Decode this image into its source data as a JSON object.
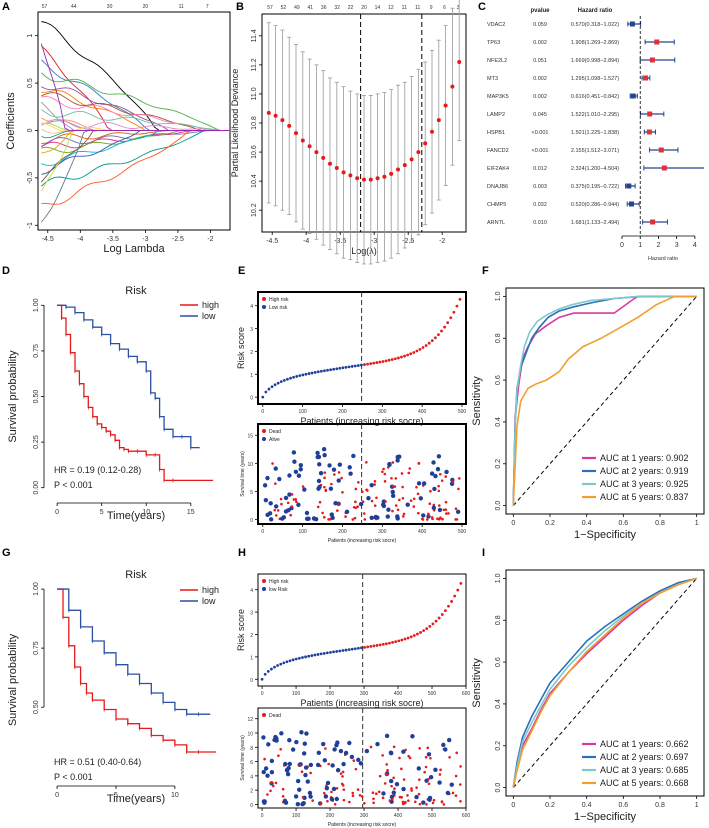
{
  "colors": {
    "red": "#e41a1c",
    "blue": "#2b4fa3",
    "navy": "#1f3f99",
    "grey": "#999999",
    "pink": "#d63a9e",
    "teal": "#2a72b8",
    "cyan": "#7fc7cf",
    "orange": "#f0a030",
    "forest_red": "#e0303a",
    "forest_blue": "#25468f"
  },
  "panel_labels": {
    "a": "A",
    "b": "B",
    "c": "C",
    "d": "D",
    "e": "E",
    "f": "F",
    "g": "G",
    "h": "H",
    "i": "I"
  },
  "chart_data": [
    {
      "id": "A",
      "type": "line",
      "xlabel": "Log Lambda",
      "ylabel": "Coefficients",
      "xticks": [
        -4.5,
        -4.0,
        -3.5,
        -3.0,
        -2.5,
        -2.0
      ],
      "xlim": [
        -4.65,
        -1.7
      ],
      "yticks": [
        -1.0,
        -0.5,
        0.0,
        0.5,
        1.0
      ],
      "ylim": [
        -1.05,
        1.25
      ],
      "top_ticks": [
        57,
        44,
        30,
        20,
        11,
        7
      ]
    },
    {
      "id": "B",
      "type": "scatter",
      "xlabel": "Log(λ)",
      "ylabel": "Partial Likelihood Deviance",
      "x": [
        -4.55,
        -4.45,
        -4.35,
        -4.25,
        -4.15,
        -4.05,
        -3.95,
        -3.85,
        -3.75,
        -3.65,
        -3.55,
        -3.45,
        -3.35,
        -3.25,
        -3.15,
        -3.05,
        -2.95,
        -2.85,
        -2.75,
        -2.65,
        -2.55,
        -2.45,
        -2.35,
        -2.25,
        -2.15,
        -2.05,
        -1.95,
        -1.85,
        -1.75
      ],
      "y": [
        10.87,
        10.85,
        10.82,
        10.78,
        10.73,
        10.68,
        10.64,
        10.6,
        10.56,
        10.52,
        10.49,
        10.46,
        10.44,
        10.42,
        10.41,
        10.41,
        10.42,
        10.43,
        10.45,
        10.48,
        10.51,
        10.55,
        10.6,
        10.66,
        10.74,
        10.82,
        10.92,
        11.05,
        11.22
      ],
      "err": [
        0.62,
        0.62,
        0.62,
        0.61,
        0.61,
        0.61,
        0.6,
        0.6,
        0.6,
        0.59,
        0.59,
        0.59,
        0.58,
        0.58,
        0.58,
        0.58,
        0.58,
        0.58,
        0.58,
        0.58,
        0.57,
        0.57,
        0.57,
        0.56,
        0.56,
        0.55,
        0.55,
        0.54,
        0.54
      ],
      "xticks": [
        -4.5,
        -4.0,
        -3.5,
        -3.0,
        -2.5,
        -2.0
      ],
      "xlim": [
        -4.65,
        -1.65
      ],
      "yticks": [
        10.2,
        10.4,
        10.6,
        10.8,
        11.0,
        11.2,
        11.4
      ],
      "ylim": [
        10.05,
        11.55
      ],
      "vlines": [
        -3.2,
        -2.3
      ],
      "top_ticks": [
        "57",
        "52",
        "49",
        "41",
        "36",
        "32",
        "22",
        "20",
        "14",
        "12",
        "11",
        "11",
        "9",
        "6",
        "3"
      ]
    },
    {
      "id": "C",
      "type": "forest",
      "pvalue_header": "pvalue",
      "hr_header": "Hazard ratio",
      "xlabel": "Hazard ratio",
      "xticks": [
        0,
        1,
        2,
        3,
        4
      ],
      "xlim": [
        0,
        4.5
      ],
      "genes": [
        {
          "name": "VDAC2",
          "p": "0.059",
          "hr_text": "0.570(0.318−1.022)",
          "hr": 0.57,
          "lo": 0.318,
          "hi": 1.022
        },
        {
          "name": "TP63",
          "p": "0.002",
          "hr_text": "1.908(1.269−2.869)",
          "hr": 1.908,
          "lo": 1.269,
          "hi": 2.869
        },
        {
          "name": "NFE2L2",
          "p": "0.051",
          "hr_text": "1.669(0.998−2.894)",
          "hr": 1.669,
          "lo": 0.998,
          "hi": 2.894
        },
        {
          "name": "MT3",
          "p": "0.002",
          "hr_text": "1.295(1.098−1.527)",
          "hr": 1.295,
          "lo": 1.098,
          "hi": 1.527
        },
        {
          "name": "MAP3K5",
          "p": "0.002",
          "hr_text": "0.616(0.451−0.842)",
          "hr": 0.616,
          "lo": 0.451,
          "hi": 0.842
        },
        {
          "name": "LAMP2",
          "p": "0.045",
          "hr_text": "1.522(1.010−2.295)",
          "hr": 1.522,
          "lo": 1.01,
          "hi": 2.295
        },
        {
          "name": "HSPB1",
          "p": "<0.001",
          "hr_text": "1.501(1.225−1.838)",
          "hr": 1.501,
          "lo": 1.225,
          "hi": 1.838
        },
        {
          "name": "FANCD2",
          "p": "<0.001",
          "hr_text": "2.155(1.512−3.071)",
          "hr": 2.155,
          "lo": 1.512,
          "hi": 3.071
        },
        {
          "name": "EIF2AK4",
          "p": "0.012",
          "hr_text": "2.324(1.200−4.504)",
          "hr": 2.324,
          "lo": 1.2,
          "hi": 4.504
        },
        {
          "name": "DNAJB6",
          "p": "0.003",
          "hr_text": "0.375(0.195−0.722)",
          "hr": 0.375,
          "lo": 0.195,
          "hi": 0.722
        },
        {
          "name": "CHMP5",
          "p": "0.032",
          "hr_text": "0.520(0.286−0.944)",
          "hr": 0.52,
          "lo": 0.286,
          "hi": 0.944
        },
        {
          "name": "ARNTL",
          "p": "0.010",
          "hr_text": "1.681(1.133−2.494)",
          "hr": 1.681,
          "lo": 1.133,
          "hi": 2.494
        }
      ]
    },
    {
      "id": "D",
      "type": "line",
      "title": "Risk",
      "xlabel": "Time(years)",
      "ylabel": "Survival probability",
      "xticks": [
        0,
        5,
        10,
        15
      ],
      "xlim": [
        -0.8,
        18.5
      ],
      "yticks": [
        0.0,
        0.25,
        0.5,
        0.75,
        1.0
      ],
      "ylim": [
        -0.04,
        1.04
      ],
      "legend": [
        "high",
        "low"
      ],
      "hr_text": "HR = 0.19 (0.12-0.28)",
      "p_text": "P < 0.001",
      "series": [
        {
          "name": "high",
          "x": [
            0,
            0.5,
            1,
            1.5,
            2,
            2.5,
            3,
            3.5,
            4,
            4.5,
            5,
            5.5,
            6,
            6.5,
            7,
            7.5,
            8,
            9,
            10,
            11,
            11.5,
            12,
            13,
            17.5
          ],
          "y": [
            1.0,
            0.93,
            0.84,
            0.74,
            0.64,
            0.57,
            0.5,
            0.44,
            0.39,
            0.35,
            0.33,
            0.31,
            0.29,
            0.26,
            0.22,
            0.21,
            0.2,
            0.2,
            0.18,
            0.18,
            0.1,
            0.04,
            0.04,
            0.04
          ]
        },
        {
          "name": "low",
          "x": [
            0,
            1,
            2,
            3,
            4,
            5,
            6,
            7,
            8,
            9,
            10,
            10.5,
            11,
            11.5,
            12,
            13,
            14,
            15,
            16
          ],
          "y": [
            1.0,
            0.99,
            0.96,
            0.92,
            0.88,
            0.84,
            0.79,
            0.76,
            0.72,
            0.69,
            0.64,
            0.52,
            0.49,
            0.39,
            0.32,
            0.28,
            0.28,
            0.22,
            0.22
          ]
        }
      ]
    },
    {
      "id": "E1",
      "type": "scatter",
      "ylabel": "Risk score",
      "xlabel": "Patients (increasing risk socre)",
      "xticks": [
        0,
        100,
        200,
        300,
        400,
        500
      ],
      "xlim": [
        -12,
        510
      ],
      "yticks": [
        0,
        1,
        2,
        3,
        4
      ],
      "ylim": [
        -0.3,
        4.6
      ],
      "cutoff": 248,
      "legend": [
        "High risk",
        "Low risk"
      ]
    },
    {
      "id": "E2",
      "type": "scatter",
      "ylabel": "Survival time (years)",
      "xlabel": "Patients (increasing risk socre)",
      "xticks": [
        0,
        100,
        200,
        300,
        400,
        500
      ],
      "xlim": [
        -12,
        510
      ],
      "yticks": [
        0,
        5,
        10,
        15
      ],
      "ylim": [
        -0.8,
        17
      ],
      "cutoff": 248,
      "legend": [
        "Dead",
        "Alive"
      ]
    },
    {
      "id": "F",
      "type": "line",
      "xlabel": "1−Specificity",
      "ylabel": "Sensitivity",
      "xticks": [
        0.0,
        0.2,
        0.4,
        0.6,
        0.8,
        1.0
      ],
      "yticks": [
        0.0,
        0.2,
        0.4,
        0.6,
        0.8,
        1.0
      ],
      "xlim": [
        -0.04,
        1.04
      ],
      "ylim": [
        -0.04,
        1.04
      ],
      "series": [
        {
          "name": "AUC at 1 years: 0.902",
          "x": [
            0,
            0.01,
            0.03,
            0.05,
            0.08,
            0.12,
            0.18,
            0.25,
            0.33,
            0.42,
            0.55,
            0.66,
            0.68,
            1.0
          ],
          "y": [
            0,
            0.42,
            0.58,
            0.7,
            0.76,
            0.82,
            0.86,
            0.9,
            0.92,
            0.92,
            0.92,
            0.99,
            1.0,
            1.0
          ]
        },
        {
          "name": "AUC at 2 years: 0.919",
          "x": [
            0,
            0.01,
            0.02,
            0.04,
            0.07,
            0.1,
            0.14,
            0.19,
            0.25,
            0.33,
            0.43,
            0.55,
            0.7,
            1.0
          ],
          "y": [
            0,
            0.4,
            0.56,
            0.66,
            0.73,
            0.8,
            0.85,
            0.9,
            0.93,
            0.95,
            0.97,
            0.99,
            1.0,
            1.0
          ]
        },
        {
          "name": "AUC at 3 years: 0.925",
          "x": [
            0,
            0.01,
            0.02,
            0.04,
            0.06,
            0.09,
            0.13,
            0.18,
            0.25,
            0.32,
            0.42,
            0.55,
            0.68,
            1.0
          ],
          "y": [
            0,
            0.38,
            0.55,
            0.67,
            0.76,
            0.83,
            0.88,
            0.91,
            0.94,
            0.96,
            0.98,
            0.99,
            1.0,
            1.0
          ]
        },
        {
          "name": "AUC at 5 years: 0.837",
          "x": [
            0,
            0.02,
            0.04,
            0.08,
            0.12,
            0.18,
            0.25,
            0.3,
            0.38,
            0.48,
            0.58,
            0.68,
            0.78,
            0.88,
            1.0
          ],
          "y": [
            0,
            0.38,
            0.5,
            0.56,
            0.58,
            0.6,
            0.64,
            0.7,
            0.76,
            0.8,
            0.85,
            0.9,
            0.96,
            1.0,
            1.0
          ]
        }
      ]
    },
    {
      "id": "G",
      "type": "line",
      "title": "Risk",
      "xlabel": "Time(years)",
      "ylabel": "Survival probability",
      "xticks": [
        0,
        5,
        10
      ],
      "xlim": [
        -0.6,
        14
      ],
      "yticks": [
        0.5,
        0.75,
        1.0
      ],
      "ylim": [
        0.2,
        1.03
      ],
      "legend": [
        "high",
        "low"
      ],
      "hr_text": "HR = 0.51 (0.40-0.64)",
      "p_text": "P < 0.001",
      "series": [
        {
          "name": "high",
          "x": [
            0,
            0.5,
            1,
            1.5,
            2,
            2.5,
            3,
            4,
            5,
            6,
            7,
            8,
            9,
            10,
            11,
            12,
            13.5
          ],
          "y": [
            1.0,
            0.88,
            0.76,
            0.67,
            0.6,
            0.56,
            0.53,
            0.49,
            0.45,
            0.43,
            0.41,
            0.38,
            0.36,
            0.34,
            0.31,
            0.31,
            0.31
          ]
        },
        {
          "name": "low",
          "x": [
            0,
            1,
            2,
            3,
            4,
            5,
            6,
            7,
            8,
            9,
            10,
            11,
            12,
            13
          ],
          "y": [
            1.0,
            0.91,
            0.84,
            0.78,
            0.73,
            0.68,
            0.64,
            0.6,
            0.56,
            0.52,
            0.49,
            0.47,
            0.47,
            0.47
          ]
        }
      ]
    },
    {
      "id": "H1",
      "type": "scatter",
      "ylabel": "Risk score",
      "xlabel": "Patients (increasing risk socre)",
      "xticks": [
        0,
        100,
        200,
        300,
        400,
        500,
        600
      ],
      "xlim": [
        -12,
        600
      ],
      "yticks": [
        0,
        1,
        2,
        3,
        4
      ],
      "ylim": [
        -0.3,
        4.7
      ],
      "cutoff": 296,
      "legend": [
        "High risk",
        "low Risk"
      ]
    },
    {
      "id": "H2",
      "type": "scatter",
      "ylabel": "Survival time (years)",
      "xlabel": "Patients (increasing risk socre)",
      "xticks": [
        0,
        100,
        200,
        300,
        400,
        500,
        600
      ],
      "xlim": [
        -12,
        600
      ],
      "yticks": [
        0,
        2,
        4,
        6,
        8,
        10,
        12
      ],
      "ylim": [
        -0.5,
        13.5
      ],
      "cutoff": 296,
      "legend": [
        "Dead"
      ]
    },
    {
      "id": "I",
      "type": "line",
      "xlabel": "1−Specificity",
      "ylabel": "Sensitivity",
      "xticks": [
        0.0,
        0.2,
        0.4,
        0.6,
        0.8,
        1.0
      ],
      "yticks": [
        0.0,
        0.2,
        0.4,
        0.6,
        0.8,
        1.0
      ],
      "xlim": [
        -0.04,
        1.04
      ],
      "ylim": [
        -0.04,
        1.04
      ],
      "series": [
        {
          "name": "AUC at 1 years: 0.662",
          "x": [
            0,
            0.02,
            0.05,
            0.1,
            0.15,
            0.2,
            0.3,
            0.4,
            0.5,
            0.6,
            0.7,
            0.8,
            0.9,
            1.0
          ],
          "y": [
            0,
            0.1,
            0.2,
            0.28,
            0.37,
            0.45,
            0.55,
            0.64,
            0.72,
            0.8,
            0.87,
            0.93,
            0.97,
            1.0
          ]
        },
        {
          "name": "AUC at 2 years: 0.697",
          "x": [
            0,
            0.02,
            0.05,
            0.1,
            0.15,
            0.2,
            0.3,
            0.4,
            0.5,
            0.6,
            0.7,
            0.8,
            0.9,
            1.0
          ],
          "y": [
            0,
            0.12,
            0.24,
            0.34,
            0.42,
            0.5,
            0.6,
            0.7,
            0.77,
            0.83,
            0.89,
            0.94,
            0.98,
            1.0
          ]
        },
        {
          "name": "AUC at 3 years: 0.685",
          "x": [
            0,
            0.02,
            0.05,
            0.1,
            0.15,
            0.2,
            0.3,
            0.4,
            0.5,
            0.6,
            0.7,
            0.8,
            0.9,
            1.0
          ],
          "y": [
            0,
            0.1,
            0.22,
            0.31,
            0.39,
            0.47,
            0.58,
            0.67,
            0.75,
            0.82,
            0.88,
            0.93,
            0.97,
            1.0
          ]
        },
        {
          "name": "AUC at 5 years: 0.668",
          "x": [
            0,
            0.02,
            0.05,
            0.1,
            0.15,
            0.2,
            0.3,
            0.4,
            0.5,
            0.6,
            0.7,
            0.8,
            0.9,
            1.0
          ],
          "y": [
            0,
            0.08,
            0.18,
            0.27,
            0.36,
            0.44,
            0.55,
            0.65,
            0.73,
            0.81,
            0.88,
            0.93,
            0.97,
            1.0
          ]
        }
      ]
    }
  ]
}
